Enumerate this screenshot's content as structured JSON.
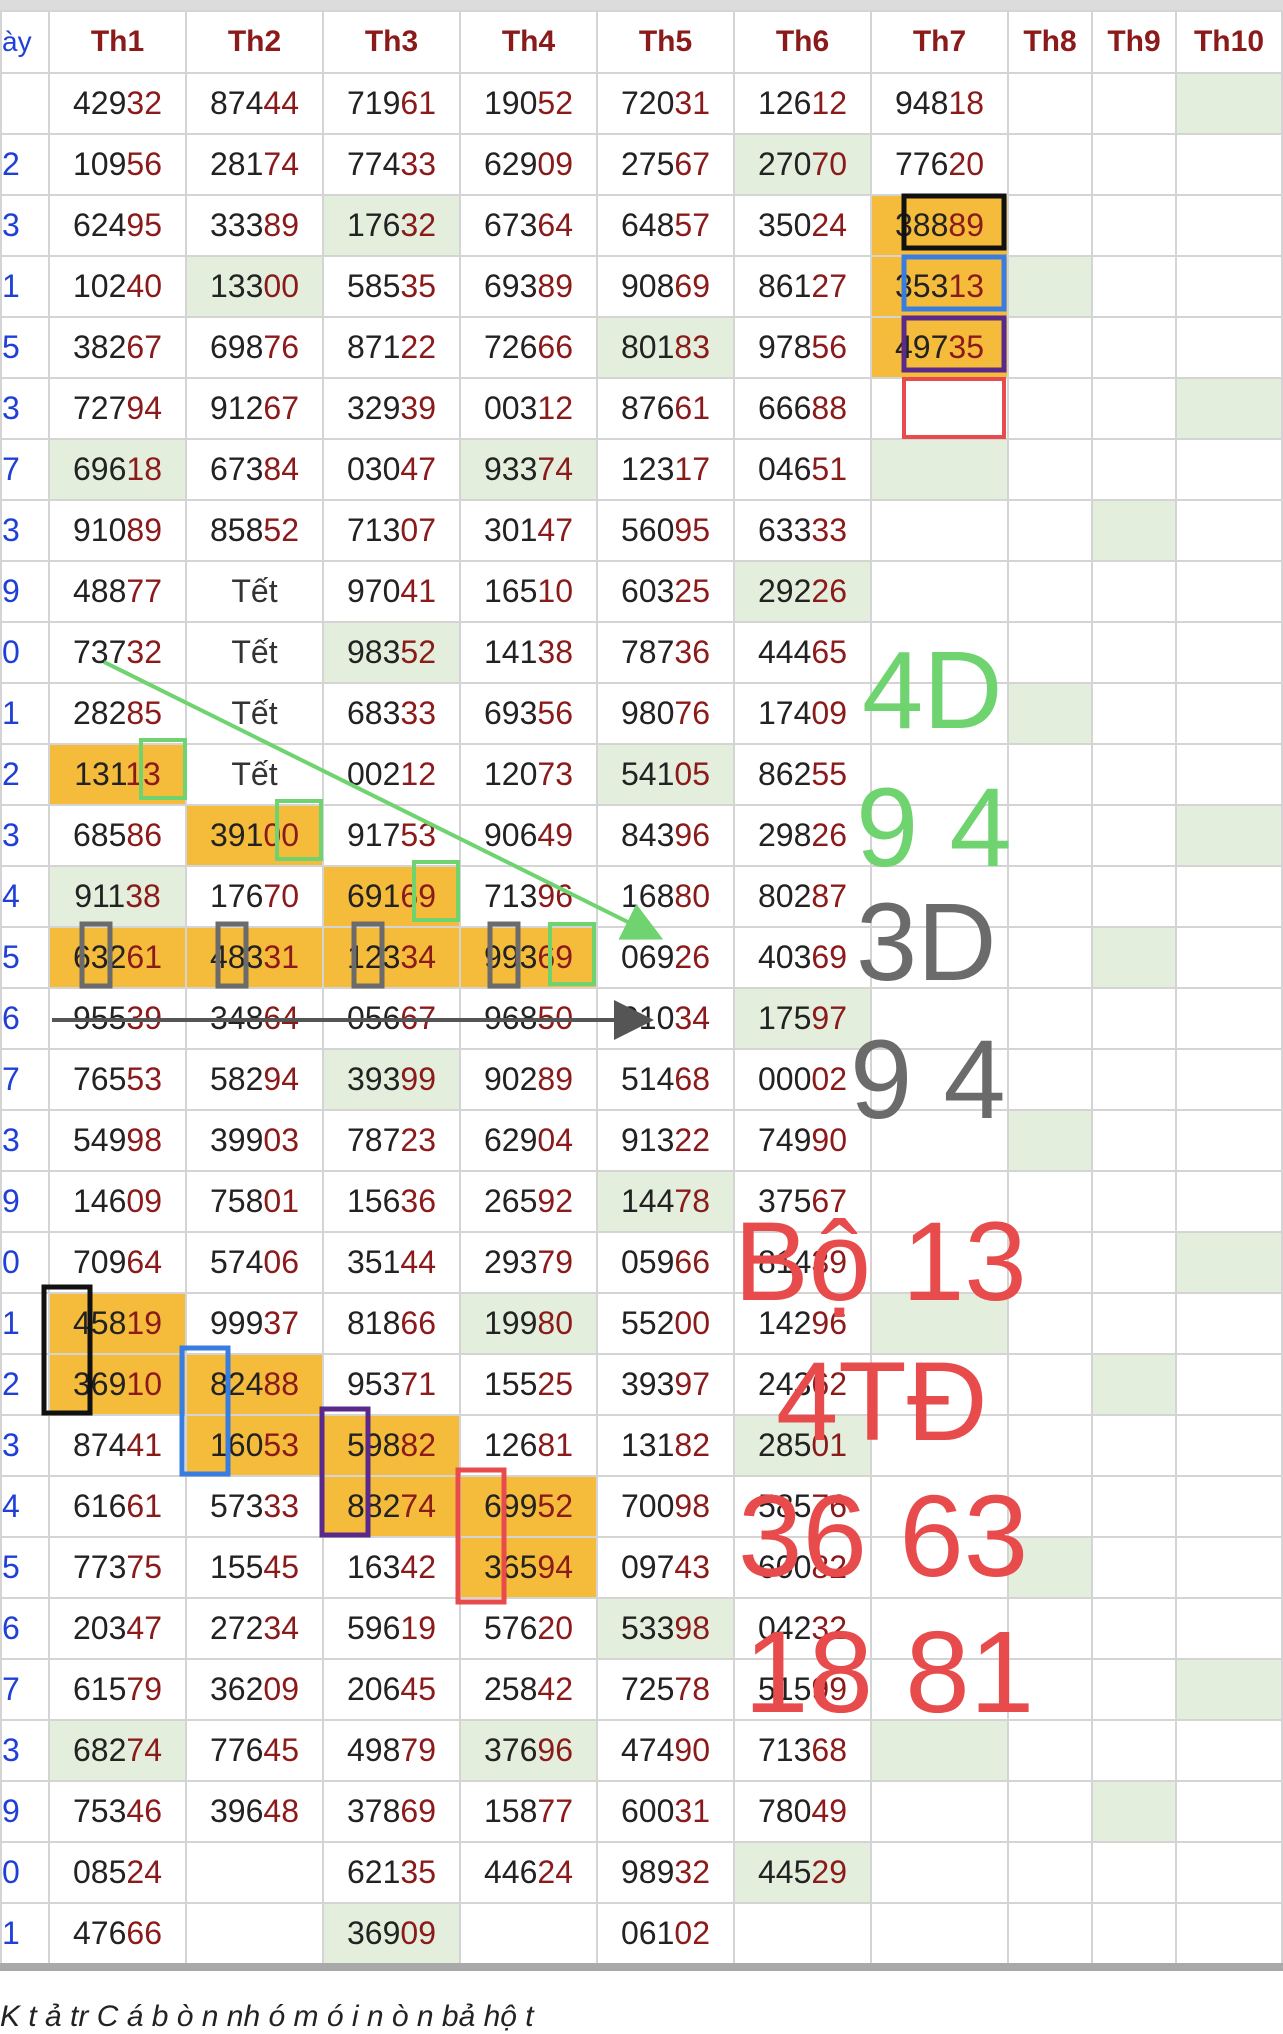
{
  "table": {
    "headers": [
      "ày",
      "Th1",
      "Th2",
      "Th3",
      "Th4",
      "Th5",
      "Th6",
      "Th7",
      "Th8",
      "Th9",
      "Th10"
    ],
    "day_labels": [
      "",
      "2",
      "3",
      "1",
      "5",
      "3",
      "7",
      "3",
      "9",
      "0",
      "1",
      "2",
      "3",
      "4",
      "5",
      "6",
      "7",
      "3",
      "9",
      "0",
      "1",
      "2",
      "3",
      "4",
      "5",
      "6",
      "7",
      "3",
      "9",
      "0",
      "1"
    ],
    "rows": [
      [
        "42932",
        "87444",
        "71961",
        "19052",
        "72031",
        "12612",
        "94818",
        "",
        "",
        ""
      ],
      [
        "10956",
        "28174",
        "77433",
        "62909",
        "27567",
        "27070",
        "77620",
        "",
        "",
        ""
      ],
      [
        "62495",
        "33389",
        "17632",
        "67364",
        "64857",
        "35024",
        "38889",
        "",
        "",
        ""
      ],
      [
        "10240",
        "13300",
        "58535",
        "69389",
        "90869",
        "86127",
        "35313",
        "",
        "",
        ""
      ],
      [
        "38267",
        "69876",
        "87122",
        "72666",
        "80183",
        "97856",
        "49735",
        "",
        "",
        ""
      ],
      [
        "72794",
        "91267",
        "32939",
        "00312",
        "87661",
        "66688",
        "",
        "",
        "",
        ""
      ],
      [
        "69618",
        "67384",
        "03047",
        "93374",
        "12317",
        "04651",
        "",
        "",
        "",
        ""
      ],
      [
        "91089",
        "85852",
        "71307",
        "30147",
        "56095",
        "63333",
        "",
        "",
        "",
        ""
      ],
      [
        "48877",
        "Tết",
        "97041",
        "16510",
        "60325",
        "29226",
        "",
        "",
        "",
        ""
      ],
      [
        "73732",
        "Tết",
        "98352",
        "14138",
        "78736",
        "44465",
        "",
        "",
        "",
        ""
      ],
      [
        "28285",
        "Tết",
        "68333",
        "69356",
        "98076",
        "17409",
        "",
        "",
        "",
        ""
      ],
      [
        "13113",
        "Tết",
        "00212",
        "12073",
        "54105",
        "86255",
        "",
        "",
        "",
        ""
      ],
      [
        "68586",
        "39100",
        "91753",
        "90649",
        "84396",
        "29826",
        "",
        "",
        "",
        ""
      ],
      [
        "91138",
        "17670",
        "69169",
        "71396",
        "16880",
        "80287",
        "",
        "",
        "",
        ""
      ],
      [
        "63261",
        "48331",
        "12334",
        "99369",
        "06926",
        "40369",
        "",
        "",
        "",
        ""
      ],
      [
        "95539",
        "34864",
        "05667",
        "96850",
        "01034",
        "17597",
        "",
        "",
        "",
        ""
      ],
      [
        "76553",
        "58294",
        "39399",
        "90289",
        "51468",
        "00002",
        "",
        "",
        "",
        ""
      ],
      [
        "54998",
        "39903",
        "78723",
        "62904",
        "91322",
        "74990",
        "",
        "",
        "",
        ""
      ],
      [
        "14609",
        "75801",
        "15636",
        "26592",
        "14478",
        "37567",
        "",
        "",
        "",
        ""
      ],
      [
        "70964",
        "57406",
        "35144",
        "29379",
        "05966",
        "81439",
        "",
        "",
        "",
        ""
      ],
      [
        "45819",
        "99937",
        "81866",
        "19980",
        "55200",
        "14296",
        "",
        "",
        "",
        ""
      ],
      [
        "36910",
        "82488",
        "95371",
        "15525",
        "39397",
        "24362",
        "",
        "",
        "",
        ""
      ],
      [
        "87441",
        "16053",
        "59882",
        "12681",
        "13182",
        "28501",
        "",
        "",
        "",
        ""
      ],
      [
        "61661",
        "57333",
        "88274",
        "69952",
        "70098",
        "58576",
        "",
        "",
        "",
        ""
      ],
      [
        "77375",
        "15545",
        "16342",
        "36594",
        "09743",
        "60082",
        "",
        "",
        "",
        ""
      ],
      [
        "20347",
        "27234",
        "59619",
        "57620",
        "53398",
        "04232",
        "",
        "",
        "",
        ""
      ],
      [
        "61579",
        "36209",
        "20645",
        "25842",
        "72578",
        "51599",
        "",
        "",
        "",
        ""
      ],
      [
        "68274",
        "77645",
        "49879",
        "37696",
        "47490",
        "71368",
        "",
        "",
        "",
        ""
      ],
      [
        "75346",
        "39648",
        "37869",
        "15877",
        "60031",
        "78049",
        "",
        "",
        "",
        ""
      ],
      [
        "08524",
        "",
        "62135",
        "44624",
        "98932",
        "44529",
        "",
        "",
        "",
        ""
      ],
      [
        "47666",
        "",
        "36909",
        "",
        "06102",
        "",
        "",
        "",
        "",
        ""
      ]
    ],
    "green_cells": [
      [
        0,
        9
      ],
      [
        1,
        5
      ],
      [
        2,
        2
      ],
      [
        3,
        1
      ],
      [
        3,
        7
      ],
      [
        4,
        4
      ],
      [
        5,
        9
      ],
      [
        6,
        0
      ],
      [
        6,
        3
      ],
      [
        6,
        6
      ],
      [
        7,
        8
      ],
      [
        8,
        5
      ],
      [
        9,
        2
      ],
      [
        10,
        7
      ],
      [
        11,
        4
      ],
      [
        12,
        9
      ],
      [
        13,
        0
      ],
      [
        14,
        8
      ],
      [
        15,
        5
      ],
      [
        16,
        2
      ],
      [
        17,
        7
      ],
      [
        18,
        4
      ],
      [
        19,
        9
      ],
      [
        20,
        3
      ],
      [
        20,
        6
      ],
      [
        21,
        8
      ],
      [
        22,
        5
      ],
      [
        23,
        2
      ],
      [
        24,
        7
      ],
      [
        25,
        4
      ],
      [
        26,
        9
      ],
      [
        27,
        0
      ],
      [
        27,
        3
      ],
      [
        27,
        6
      ],
      [
        28,
        8
      ],
      [
        29,
        5
      ],
      [
        30,
        2
      ]
    ],
    "yellow_cells": [
      [
        2,
        6
      ],
      [
        3,
        6
      ],
      [
        4,
        6
      ],
      [
        11,
        0
      ],
      [
        12,
        1
      ],
      [
        13,
        2
      ],
      [
        14,
        0
      ],
      [
        14,
        1
      ],
      [
        14,
        2
      ],
      [
        14,
        3
      ],
      [
        20,
        0
      ],
      [
        21,
        0
      ],
      [
        21,
        1
      ],
      [
        22,
        1
      ],
      [
        22,
        2
      ],
      [
        23,
        2
      ],
      [
        23,
        3
      ],
      [
        24,
        3
      ]
    ]
  },
  "annotations": {
    "green_label_1": "4D",
    "green_label_2": "9 4",
    "gray_label_1": "3D",
    "gray_label_2": "9 4",
    "red_label_1": "Bộ 13",
    "red_label_2": "4TĐ",
    "red_label_3": "36 63",
    "red_label_4": "18 81",
    "colors": {
      "green": "#6fd36f",
      "gray": "#6b6b6b",
      "red": "#e84b4b",
      "black": "#111111",
      "blue": "#3a7de0",
      "purple": "#5a2a8a"
    }
  },
  "footer": {
    "caption": "K t      ả  tr  C á    b  ò n   nh   ó  m   ó i  n  ò n   bả  hộ t"
  }
}
